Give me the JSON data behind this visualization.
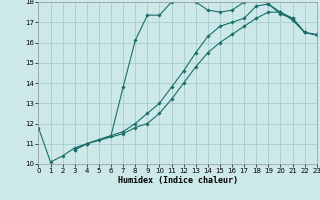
{
  "title": "",
  "xlabel": "Humidex (Indice chaleur)",
  "background_color": "#cce8e8",
  "grid_color": "#aacccc",
  "line_color": "#1a6e6a",
  "x_min": 0,
  "x_max": 23,
  "y_min": 10,
  "y_max": 18,
  "line1_x": [
    0,
    1,
    2,
    3,
    4,
    5,
    6,
    7,
    8,
    9,
    10,
    11,
    12,
    13,
    14,
    15,
    16,
    17,
    18,
    19,
    20,
    21,
    22
  ],
  "line1_y": [
    11.8,
    10.1,
    10.4,
    10.8,
    11.0,
    11.2,
    11.4,
    13.8,
    16.1,
    17.35,
    17.35,
    18.0,
    18.3,
    18.0,
    17.6,
    17.5,
    17.6,
    18.0,
    18.3,
    17.9,
    17.4,
    17.2,
    16.5
  ],
  "line2_x": [
    3,
    4,
    7,
    8,
    9,
    10,
    11,
    12,
    13,
    14,
    15,
    16,
    17,
    18,
    19,
    20,
    21,
    22,
    23
  ],
  "line2_y": [
    10.7,
    11.0,
    11.6,
    12.0,
    12.5,
    13.0,
    13.8,
    14.6,
    15.5,
    16.3,
    16.8,
    17.0,
    17.2,
    17.8,
    17.9,
    17.5,
    17.2,
    16.5,
    16.35
  ],
  "line3_x": [
    3,
    4,
    7,
    8,
    9,
    10,
    11,
    12,
    13,
    14,
    15,
    16,
    17,
    18,
    19,
    20,
    21,
    22,
    23
  ],
  "line3_y": [
    10.7,
    11.0,
    11.5,
    11.8,
    12.0,
    12.5,
    13.2,
    14.0,
    14.8,
    15.5,
    16.0,
    16.4,
    16.8,
    17.2,
    17.5,
    17.5,
    17.1,
    16.5,
    16.4
  ]
}
